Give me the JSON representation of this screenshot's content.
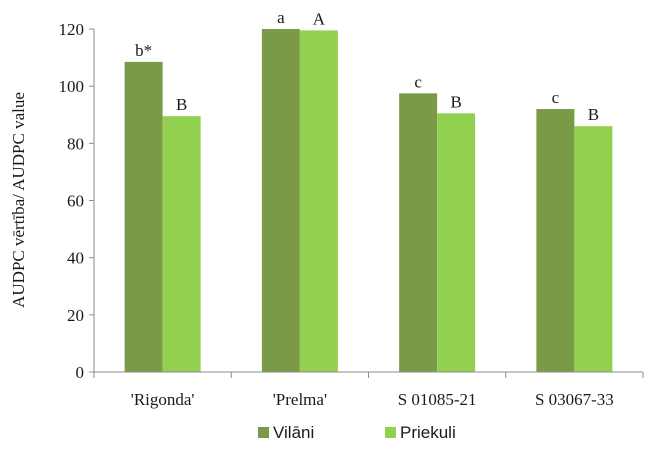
{
  "chart_data": {
    "type": "bar",
    "categories": [
      "'Rigonda'",
      "'Prelma'",
      "S 01085-21",
      "S 03067-33"
    ],
    "series": [
      {
        "name": "Vilāni",
        "color": "#7a9a48",
        "values": [
          108.5,
          120,
          97.5,
          92
        ],
        "labels": [
          "b*",
          "a",
          "c",
          "c"
        ]
      },
      {
        "name": "Priekuli",
        "color": "#92d050",
        "values": [
          89.5,
          119.5,
          90.5,
          86
        ],
        "labels": [
          "B",
          "A",
          "B",
          "B"
        ]
      }
    ],
    "ylabel": "AUDPC vērtība/ AUDPC value",
    "xlabel": "",
    "ylim": [
      0,
      120
    ],
    "yticks": [
      0,
      20,
      40,
      60,
      80,
      100,
      120
    ],
    "legend": "bottom",
    "grid": false
  }
}
